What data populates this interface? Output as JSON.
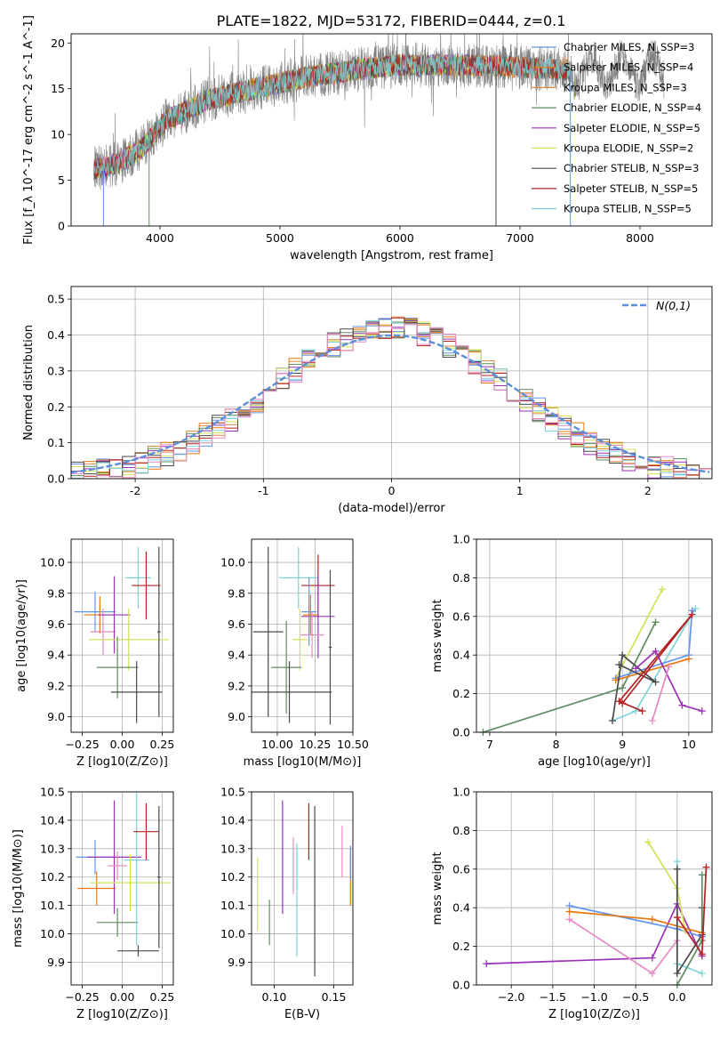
{
  "figure": {
    "title": "PLATE=1822, MJD=53172, FIBERID=0444, z=0.1"
  },
  "chart_data": [
    {
      "id": "spectrum",
      "type": "line",
      "xlabel": "wavelength [Angstrom, rest frame]",
      "ylabel": "Flux [f_λ 10^-17 erg cm^-2 s^-1 A^-1]",
      "xlim": [
        3260,
        8600
      ],
      "ylim": [
        0,
        21
      ],
      "xticks": [
        4000,
        5000,
        6000,
        7000,
        8000
      ],
      "yticks": [
        0,
        5,
        10,
        15,
        20
      ],
      "grid": false,
      "legend_position": "upper-right",
      "continuum_knots": {
        "x": [
          3450,
          3650,
          3850,
          4050,
          4400,
          4800,
          5200,
          5600,
          6000,
          6400,
          6800,
          7200,
          7420
        ],
        "y": [
          6.2,
          6.8,
          8.5,
          11.5,
          13.8,
          15.0,
          16.2,
          17.0,
          17.6,
          17.6,
          17.5,
          17.2,
          17.0
        ]
      },
      "data_range": [
        3450,
        8200
      ],
      "dips": [
        {
          "x": 3530,
          "y": 0
        },
        {
          "x": 3910,
          "y": 0
        },
        {
          "x": 6800,
          "y": 0
        },
        {
          "x": 7420,
          "y": 0
        }
      ],
      "series": [
        {
          "name": "Chabrier MILES, N_SSP=3",
          "color": "#6495ed",
          "xmax": 7420
        },
        {
          "name": "Salpeter MILES, N_SSP=4",
          "color": "#e6780f",
          "xmax": 7420
        },
        {
          "name": "Kroupa MILES, N_SSP=3",
          "color": "#d98c3f",
          "xmax": 7420
        },
        {
          "name": "Chabrier ELODIE, N_SSP=4",
          "color": "#5e8c5e",
          "xmax": 6800
        },
        {
          "name": "Salpeter ELODIE, N_SSP=5",
          "color": "#9932b8",
          "xmax": 6800
        },
        {
          "name": "Kroupa ELODIE, N_SSP=2",
          "color": "#d4e157",
          "xmax": 6800
        },
        {
          "name": "Chabrier STELIB, N_SSP=3",
          "color": "#4a4a4a",
          "xmax": 7420
        },
        {
          "name": "Salpeter STELIB, N_SSP=5",
          "color": "#b22222",
          "xmax": 7420
        },
        {
          "name": "Kroupa STELIB, N_SSP=5",
          "color": "#7fd3d8",
          "xmax": 7420
        }
      ],
      "data_color": "#808080"
    },
    {
      "id": "residuals",
      "type": "histogram",
      "xlabel": "(data-model)/error",
      "ylabel": "Normed distribution",
      "xlim": [
        -2.5,
        2.5
      ],
      "ylim": [
        0,
        0.535
      ],
      "xticks": [
        -2,
        -1,
        0,
        1,
        2
      ],
      "yticks": [
        0.0,
        0.1,
        0.2,
        0.3,
        0.4,
        0.5
      ],
      "grid": true,
      "legend_position": "upper-right",
      "reference_curve": {
        "name": "N(0,1)",
        "color": "#5b8fd9"
      },
      "bin_width": 0.1,
      "series_colors": [
        "#6495ed",
        "#e6780f",
        "#d98c3f",
        "#5e8c5e",
        "#9932b8",
        "#d4e157",
        "#4a4a4a",
        "#b22222",
        "#7fd3d8",
        "#e78ac3"
      ]
    },
    {
      "id": "age_vs_Z",
      "type": "errorbar",
      "xlabel": "Z [log10(Z/Z⊙)]",
      "ylabel": "age [log10(age/yr)]",
      "xlim": [
        -0.32,
        0.32
      ],
      "ylim": [
        8.9,
        10.15
      ],
      "xticks": [
        -0.25,
        0.0,
        0.25
      ],
      "xticklabels": [
        "−0.25",
        "0.00",
        "0.25"
      ],
      "yticks": [
        9.0,
        9.2,
        9.4,
        9.6,
        9.8,
        10.0
      ],
      "grid": true,
      "points": [
        {
          "x": -0.17,
          "xerr": 0.13,
          "y": 9.68,
          "yerr": 0.13,
          "color": "#6495ed"
        },
        {
          "x": -0.14,
          "xerr": 0.1,
          "y": 9.66,
          "yerr": 0.12,
          "color": "#e6780f"
        },
        {
          "x": -0.12,
          "xerr": 0.08,
          "y": 9.55,
          "yerr": 0.15,
          "color": "#e78ac3"
        },
        {
          "x": -0.05,
          "xerr": 0.1,
          "y": 9.66,
          "yerr": 0.25,
          "color": "#9932b8"
        },
        {
          "x": 0.04,
          "xerr": 0.25,
          "y": 9.5,
          "yerr": 0.2,
          "color": "#d4e157"
        },
        {
          "x": -0.03,
          "xerr": 0.13,
          "y": 9.32,
          "yerr": 0.2,
          "color": "#5e8c5e"
        },
        {
          "x": 0.1,
          "xerr": 0.08,
          "y": 9.9,
          "yerr": 0.2,
          "color": "#7fd3d8"
        },
        {
          "x": 0.15,
          "xerr": 0.09,
          "y": 9.85,
          "yerr": 0.22,
          "color": "#b22222"
        },
        {
          "x": 0.09,
          "xerr": 0.16,
          "y": 9.16,
          "yerr": 0.2,
          "color": "#4a4a4a"
        },
        {
          "x": 0.23,
          "xerr": 0.01,
          "y": 9.55,
          "yerr": 0.55,
          "color": "#4a4a4a"
        }
      ]
    },
    {
      "id": "age_vs_mass",
      "type": "errorbar",
      "xlabel": "mass [log10(M/M⊙)]",
      "ylabel": "",
      "xlim": [
        9.83,
        10.5
      ],
      "ylim": [
        8.9,
        10.15
      ],
      "xticks": [
        10.0,
        10.25,
        10.5
      ],
      "xticklabels": [
        "10.00",
        "10.25",
        "10.50"
      ],
      "yticks": [
        9.0,
        9.2,
        9.4,
        9.6,
        9.8,
        10.0
      ],
      "grid": true,
      "points": [
        {
          "x": 9.94,
          "xerr": 0.1,
          "y": 9.55,
          "yerr": 0.55,
          "color": "#4a4a4a"
        },
        {
          "x": 10.14,
          "xerr": 0.13,
          "y": 9.9,
          "yerr": 0.2,
          "color": "#7fd3d8"
        },
        {
          "x": 10.27,
          "xerr": 0.11,
          "y": 9.85,
          "yerr": 0.2,
          "color": "#b22222"
        },
        {
          "x": 10.27,
          "xerr": 0.11,
          "y": 9.65,
          "yerr": 0.27,
          "color": "#9932b8"
        },
        {
          "x": 10.21,
          "xerr": 0.05,
          "y": 9.68,
          "yerr": 0.22,
          "color": "#6495ed"
        },
        {
          "x": 10.22,
          "xerr": 0.05,
          "y": 9.66,
          "yerr": 0.13,
          "color": "#e6780f"
        },
        {
          "x": 10.23,
          "xerr": 0.08,
          "y": 9.53,
          "yerr": 0.15,
          "color": "#e78ac3"
        },
        {
          "x": 10.15,
          "xerr": 0.05,
          "y": 9.5,
          "yerr": 0.2,
          "color": "#d4e157"
        },
        {
          "x": 10.06,
          "xerr": 0.1,
          "y": 9.32,
          "yerr": 0.3,
          "color": "#5e8c5e"
        },
        {
          "x": 10.08,
          "xerr": 0.28,
          "y": 9.16,
          "yerr": 0.2,
          "color": "#4a4a4a"
        },
        {
          "x": 10.35,
          "xerr": 0.01,
          "y": 9.45,
          "yerr": 0.5,
          "color": "#4a4a4a"
        }
      ]
    },
    {
      "id": "weight_vs_age",
      "type": "line",
      "xlabel": "age [log10(age/yr)]",
      "ylabel": "mass weight",
      "xlim": [
        6.8,
        10.35
      ],
      "ylim": [
        0,
        1.0
      ],
      "xticks": [
        7,
        8,
        9,
        10
      ],
      "yticks": [
        0.0,
        0.2,
        0.4,
        0.6,
        0.8,
        1.0
      ],
      "grid": true,
      "series": [
        {
          "color": "#5e8c5e",
          "x": [
            6.9,
            9.0,
            9.5
          ],
          "y": [
            0.0,
            0.23,
            0.57
          ]
        },
        {
          "color": "#d4e157",
          "x": [
            8.9,
            9.6
          ],
          "y": [
            0.28,
            0.74
          ]
        },
        {
          "color": "#7fd3d8",
          "x": [
            8.85,
            9.2,
            10.1
          ],
          "y": [
            0.06,
            0.11,
            0.64
          ]
        },
        {
          "color": "#6495ed",
          "x": [
            8.9,
            10.0,
            10.05
          ],
          "y": [
            0.28,
            0.4,
            0.63
          ]
        },
        {
          "color": "#e6780f",
          "x": [
            8.9,
            10.0
          ],
          "y": [
            0.27,
            0.38
          ]
        },
        {
          "color": "#4a4a4a",
          "x": [
            8.85,
            9.0,
            9.5,
            8.95
          ],
          "y": [
            0.06,
            0.4,
            0.26,
            0.35
          ]
        },
        {
          "color": "#b22222",
          "x": [
            9.0,
            10.05,
            8.95,
            9.3
          ],
          "y": [
            0.15,
            0.61,
            0.16,
            0.11
          ]
        },
        {
          "color": "#9932b8",
          "x": [
            9.2,
            9.5,
            9.9,
            10.2
          ],
          "y": [
            0.33,
            0.42,
            0.14,
            0.11
          ]
        },
        {
          "color": "#e78ac3",
          "x": [
            9.45,
            9.7
          ],
          "y": [
            0.06,
            0.34
          ]
        }
      ]
    },
    {
      "id": "mass_vs_Z",
      "type": "errorbar",
      "xlabel": "Z [log10(Z/Z⊙)]",
      "ylabel": "mass [log10(M/M⊙)]",
      "xlim": [
        -0.32,
        0.32
      ],
      "ylim": [
        9.82,
        10.5
      ],
      "xticks": [
        -0.25,
        0.0,
        0.25
      ],
      "xticklabels": [
        "−0.25",
        "0.00",
        "0.25"
      ],
      "yticks": [
        9.9,
        10.0,
        10.1,
        10.2,
        10.3,
        10.4,
        10.5
      ],
      "grid": true,
      "points": [
        {
          "x": -0.17,
          "xerr": 0.12,
          "y": 10.27,
          "yerr": 0.06,
          "color": "#6495ed"
        },
        {
          "x": -0.16,
          "xerr": 0.12,
          "y": 10.16,
          "yerr": 0.06,
          "color": "#e6780f"
        },
        {
          "x": -0.05,
          "xerr": 0.17,
          "y": 10.27,
          "yerr": 0.2,
          "color": "#9932b8"
        },
        {
          "x": -0.03,
          "xerr": 0.06,
          "y": 10.24,
          "yerr": 0.05,
          "color": "#e78ac3"
        },
        {
          "x": 0.05,
          "xerr": 0.25,
          "y": 10.18,
          "yerr": 0.1,
          "color": "#d4e157"
        },
        {
          "x": -0.03,
          "xerr": 0.13,
          "y": 10.04,
          "yerr": 0.05,
          "color": "#5e8c5e"
        },
        {
          "x": 0.09,
          "xerr": 0.08,
          "y": 10.26,
          "yerr": 0.3,
          "color": "#7fd3d8"
        },
        {
          "x": 0.15,
          "xerr": 0.08,
          "y": 10.36,
          "yerr": 0.1,
          "color": "#b22222"
        },
        {
          "x": 0.1,
          "xerr": 0.13,
          "y": 9.94,
          "yerr": 0.02,
          "color": "#4a4a4a"
        },
        {
          "x": 0.23,
          "xerr": 0.01,
          "y": 10.2,
          "yerr": 0.25,
          "color": "#4a4a4a"
        }
      ]
    },
    {
      "id": "mass_vs_ebv",
      "type": "errorbar",
      "xlabel": "E(B-V)",
      "ylabel": "",
      "xlim": [
        0.081,
        0.166
      ],
      "ylim": [
        9.82,
        10.5
      ],
      "xticks": [
        0.1,
        0.15
      ],
      "xticklabels": [
        "0.10",
        "0.15"
      ],
      "yticks": [
        9.9,
        10.0,
        10.1,
        10.2,
        10.3,
        10.4,
        10.5
      ],
      "grid": true,
      "points": [
        {
          "x": 0.086,
          "y": 10.14,
          "yerr": 0.13,
          "color": "#d4e157"
        },
        {
          "x": 0.096,
          "y": 10.04,
          "yerr": 0.08,
          "color": "#5e8c5e"
        },
        {
          "x": 0.107,
          "y": 10.27,
          "yerr": 0.2,
          "color": "#9932b8"
        },
        {
          "x": 0.116,
          "y": 10.24,
          "yerr": 0.1,
          "color": "#e78ac3"
        },
        {
          "x": 0.119,
          "y": 10.12,
          "yerr": 0.2,
          "color": "#7fd3d8"
        },
        {
          "x": 0.129,
          "y": 10.36,
          "yerr": 0.1,
          "color": "#b22222"
        },
        {
          "x": 0.134,
          "y": 10.15,
          "yerr": 0.3,
          "color": "#4a4a4a"
        },
        {
          "x": 0.157,
          "y": 10.29,
          "yerr": 0.09,
          "color": "#e78ac3"
        },
        {
          "x": 0.164,
          "y": 10.2,
          "yerr": 0.1,
          "color": "#e6780f"
        },
        {
          "x": 0.164,
          "y": 10.25,
          "yerr": 0.06,
          "color": "#6495ed"
        }
      ]
    },
    {
      "id": "weight_vs_Z",
      "type": "line",
      "xlabel": "Z [log10(Z/Z⊙)]",
      "ylabel": "mass weight",
      "xlim": [
        -2.42,
        0.42
      ],
      "ylim": [
        0,
        1.0
      ],
      "xticks": [
        -2.0,
        -1.5,
        -1.0,
        -0.5,
        0.0
      ],
      "xticklabels": [
        "−2.0",
        "−1.5",
        "−1.0",
        "−0.5",
        "0.0"
      ],
      "yticks": [
        0.0,
        0.2,
        0.4,
        0.6,
        0.8,
        1.0
      ],
      "grid": true,
      "series": [
        {
          "color": "#9932b8",
          "x": [
            -2.3,
            -0.3,
            0.0,
            0.3
          ],
          "y": [
            0.11,
            0.14,
            0.42,
            0.15
          ]
        },
        {
          "color": "#6495ed",
          "x": [
            -1.3,
            0.0,
            0.3
          ],
          "y": [
            0.41,
            0.29,
            0.25
          ]
        },
        {
          "color": "#e6780f",
          "x": [
            -1.3,
            -0.3,
            0.3
          ],
          "y": [
            0.38,
            0.34,
            0.27
          ]
        },
        {
          "color": "#e78ac3",
          "x": [
            -1.3,
            -0.3,
            0.0
          ],
          "y": [
            0.34,
            0.06,
            0.23
          ]
        },
        {
          "color": "#d4e157",
          "x": [
            -0.35,
            0.0,
            0.1
          ],
          "y": [
            0.74,
            0.5,
            0.28
          ]
        },
        {
          "color": "#7fd3d8",
          "x": [
            0.0,
            0.0,
            0.3
          ],
          "y": [
            0.64,
            0.11,
            0.06
          ]
        },
        {
          "color": "#4a4a4a",
          "x": [
            0.0,
            0.0,
            0.3,
            0.3
          ],
          "y": [
            0.6,
            0.06,
            0.26,
            0.4
          ]
        },
        {
          "color": "#5e8c5e",
          "x": [
            0.0,
            0.3,
            0.3
          ],
          "y": [
            0.0,
            0.23,
            0.57
          ]
        },
        {
          "color": "#b22222",
          "x": [
            0.0,
            0.3,
            0.35
          ],
          "y": [
            0.35,
            0.16,
            0.61
          ]
        }
      ]
    }
  ]
}
